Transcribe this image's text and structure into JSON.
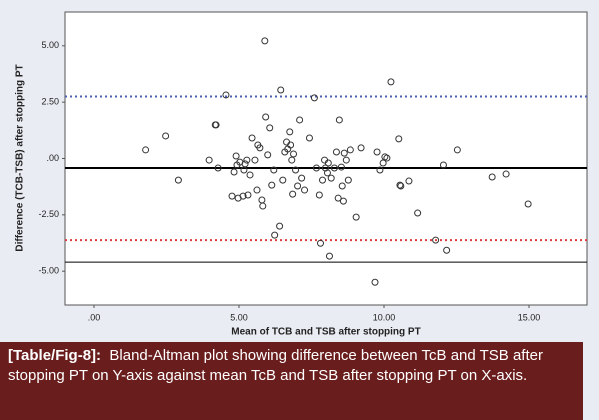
{
  "chart_data": {
    "type": "scatter",
    "x_label": "Mean of TCB and TSB after stopping PT",
    "y_label": "Difference (TCB-TSB) after stopping PT",
    "x": [
      1.78,
      2.47,
      2.91,
      3.97,
      4.18,
      4.21,
      4.28,
      4.55,
      4.76,
      4.83,
      4.9,
      4.93,
      4.97,
      5.03,
      5.14,
      5.17,
      5.21,
      5.27,
      5.31,
      5.38,
      5.45,
      5.55,
      5.62,
      5.65,
      5.72,
      5.79,
      5.82,
      5.89,
      5.92,
      5.99,
      6.06,
      6.13,
      6.2,
      6.23,
      6.4,
      6.44,
      6.51,
      6.58,
      6.64,
      6.68,
      6.75,
      6.78,
      6.82,
      6.85,
      6.88,
      6.95,
      7.02,
      7.09,
      7.16,
      7.26,
      7.43,
      7.6,
      7.67,
      7.77,
      7.81,
      7.88,
      7.95,
      7.98,
      8.05,
      8.08,
      8.12,
      8.18,
      8.29,
      8.36,
      8.42,
      8.46,
      8.53,
      8.56,
      8.6,
      8.63,
      8.7,
      8.77,
      8.84,
      9.04,
      9.21,
      9.69,
      9.76,
      9.86,
      9.97,
      10.03,
      10.1,
      10.24,
      10.51,
      10.55,
      10.58,
      10.86,
      11.16,
      11.78,
      12.05,
      12.16,
      12.53,
      13.73,
      14.21,
      14.97
    ],
    "values": [
      0.38,
      1.0,
      -0.96,
      -0.07,
      1.49,
      1.49,
      -0.42,
      2.82,
      -1.67,
      -0.6,
      0.11,
      -0.29,
      -1.76,
      -0.16,
      -1.67,
      -0.51,
      -0.24,
      -0.07,
      -1.62,
      -0.73,
      0.91,
      -0.07,
      -1.4,
      0.6,
      0.47,
      -1.84,
      -2.11,
      5.22,
      1.84,
      0.16,
      1.36,
      -1.18,
      -0.51,
      -3.4,
      -3.0,
      3.04,
      -0.96,
      0.29,
      0.73,
      0.42,
      1.18,
      0.6,
      -0.07,
      -1.58,
      0.2,
      -0.51,
      -1.22,
      1.71,
      -0.87,
      -1.4,
      0.91,
      2.69,
      -0.42,
      -1.62,
      -3.76,
      -0.96,
      -0.07,
      -0.42,
      -0.64,
      -0.2,
      -4.33,
      -0.87,
      -0.42,
      0.29,
      -1.76,
      1.71,
      -0.38,
      -1.22,
      -1.89,
      0.24,
      -0.07,
      -0.96,
      0.38,
      -2.6,
      0.47,
      -5.49,
      0.29,
      -0.51,
      -0.2,
      0.07,
      0.02,
      3.4,
      0.87,
      -1.18,
      -1.22,
      -1.0,
      -2.42,
      -3.62,
      -0.29,
      -4.07,
      0.38,
      -0.82,
      -0.69,
      -2.02
    ],
    "color": "#333333",
    "reference_lines": [
      {
        "value": 2.75,
        "color": "#4a5fb5",
        "style": "dotted"
      },
      {
        "value": -0.42,
        "color": "#000000",
        "style": "solid"
      },
      {
        "value": -3.62,
        "color": "#e03c3c",
        "style": "dotted"
      },
      {
        "value": -4.6,
        "color": "#000000",
        "style": "thin"
      }
    ],
    "xlim": [
      -1,
      17
    ],
    "ylim": [
      -6.5,
      6.5
    ],
    "xticks": [
      {
        "value": 0,
        "label": ".00"
      },
      {
        "value": 5,
        "label": "5.00"
      },
      {
        "value": 10,
        "label": "10.00"
      },
      {
        "value": 15,
        "label": "15.00"
      }
    ],
    "yticks": [
      {
        "value": -5,
        "label": "-5.00"
      },
      {
        "value": -2.5,
        "label": "-2.50"
      },
      {
        "value": 0,
        "label": ".00"
      },
      {
        "value": 2.5,
        "label": "2.50"
      },
      {
        "value": 5,
        "label": "5.00"
      }
    ]
  },
  "caption": {
    "label": "[Table/Fig-8]:",
    "text": "Bland-Altman plot showing difference between TcB and TSB after stopping PT on Y-axis against mean TcB and TSB after stopping PT on X-axis."
  }
}
